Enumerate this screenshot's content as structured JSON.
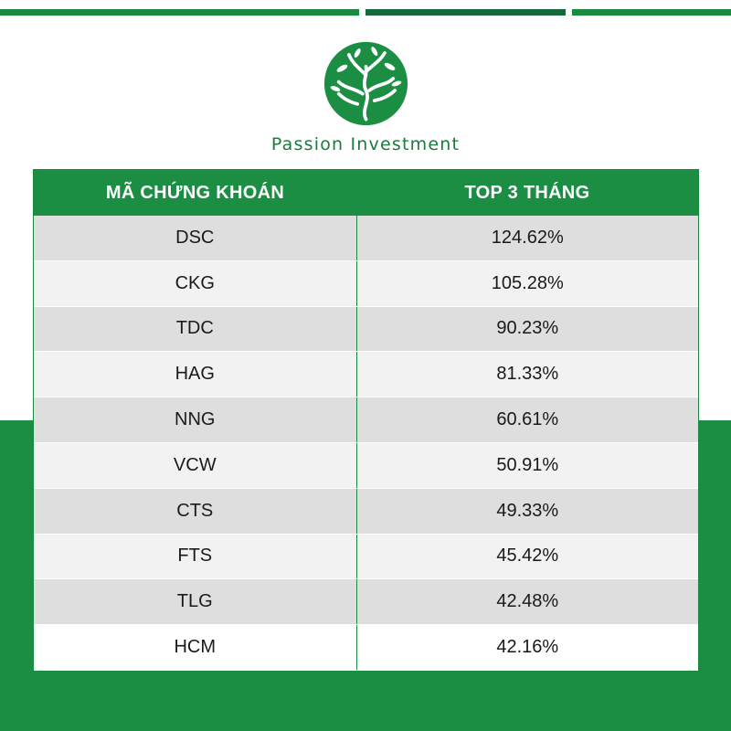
{
  "brand": {
    "name": "Passion Investment",
    "logo_icon": "tree-logo-icon",
    "colors": {
      "green": "#1c8e44",
      "dark_green": "#15683a",
      "row_dark": "#dedede",
      "row_light": "#f2f2f2"
    }
  },
  "table": {
    "headers": {
      "code": "MÃ CHỨNG KHOÁN",
      "value": "TOP 3 THÁNG"
    },
    "rows": [
      {
        "code": "DSC",
        "value": "124.62%"
      },
      {
        "code": "CKG",
        "value": "105.28%"
      },
      {
        "code": "TDC",
        "value": "90.23%"
      },
      {
        "code": "HAG",
        "value": "81.33%"
      },
      {
        "code": "NNG",
        "value": "60.61%"
      },
      {
        "code": "VCW",
        "value": "50.91%"
      },
      {
        "code": "CTS",
        "value": "49.33%"
      },
      {
        "code": "FTS",
        "value": "45.42%"
      },
      {
        "code": "TLG",
        "value": "42.48%"
      },
      {
        "code": "HCM",
        "value": "42.16%"
      }
    ]
  }
}
